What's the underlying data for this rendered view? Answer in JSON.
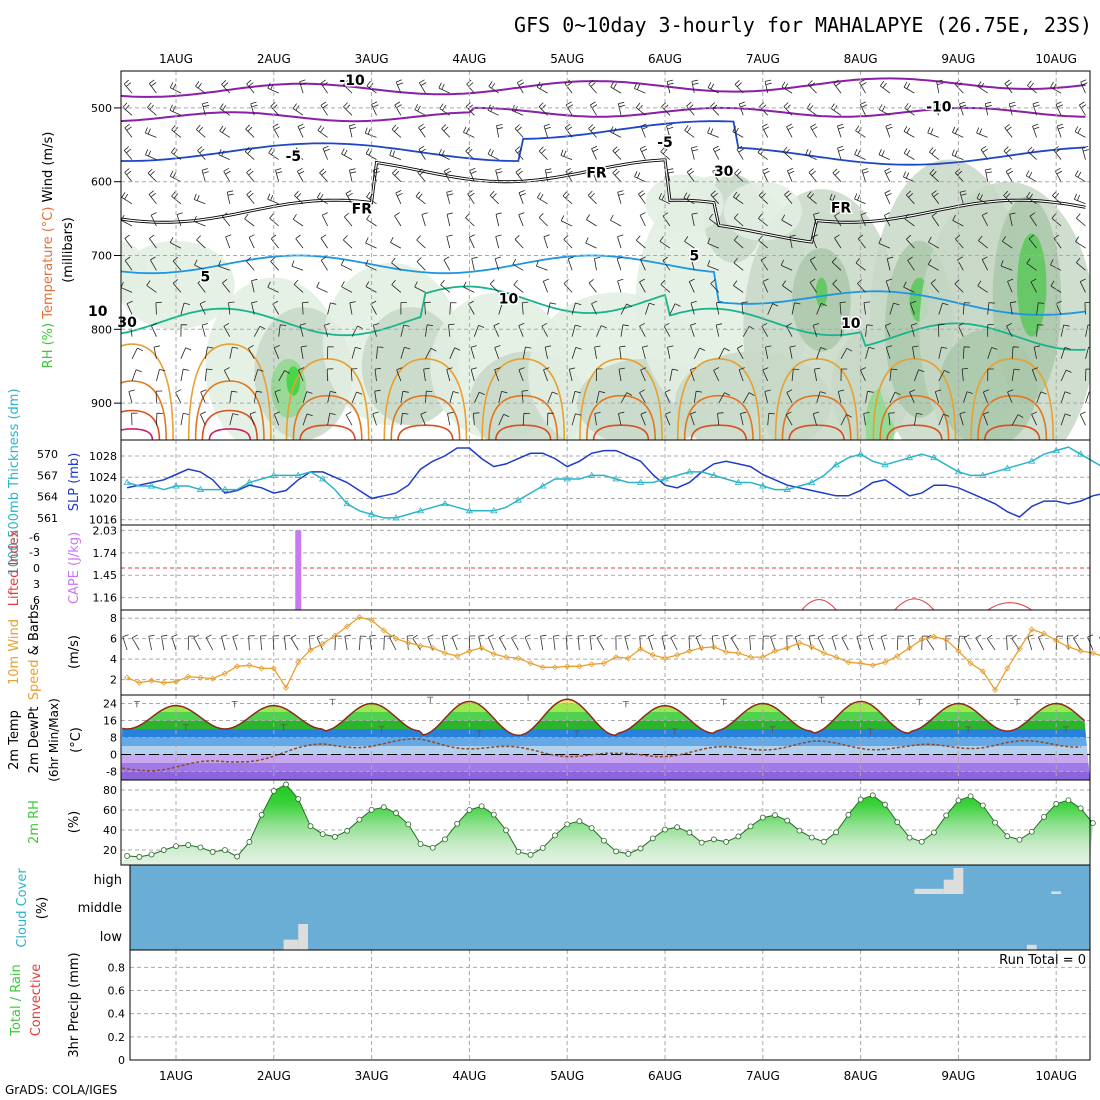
{
  "title": "GFS 0~10day 3-hourly for MAHALAPYE (26.75E, 23S)",
  "footer": "GrADS: COLA/IGES",
  "dates": [
    "1AUG",
    "2AUG",
    "3AUG",
    "4AUG",
    "5AUG",
    "6AUG",
    "7AUG",
    "8AUG",
    "9AUG",
    "10AUG"
  ],
  "colors": {
    "rh": "#3cc83c",
    "temp": "#e0703c",
    "slp": "#1e3cc8",
    "thickness": "#2cb4c8",
    "cape": "#c878f0",
    "li": "#e03c3c",
    "wind": "#e8a030",
    "precip_total": "#3cc83c",
    "precip_conv": "#e03c3c",
    "cloud_bg": "#6aaed6",
    "cloud_on": "#dddddd"
  },
  "chart_data": [
    {
      "type": "heatmap",
      "panel": "upper-air",
      "ylabels": [
        {
          "text": "RH (%)",
          "color": "#3cc83c"
        },
        {
          "text": "Temperature (°C)",
          "color": "#e0703c"
        },
        {
          "text": "Wind (m/s)",
          "color": "#000000"
        },
        {
          "text": "(millibars)",
          "color": "#000000"
        }
      ],
      "yticks": [
        500,
        600,
        700,
        800,
        900
      ],
      "ylim": [
        950,
        450
      ],
      "contour_labels": [
        {
          "text": "-10",
          "day": 2.8,
          "p": 469,
          "color": "#8a1fa8"
        },
        {
          "text": "-10",
          "day": 8.8,
          "p": 505,
          "color": "#8a1fa8"
        },
        {
          "text": "-5",
          "day": 2.2,
          "p": 572,
          "color": "#1e46c8"
        },
        {
          "text": "-5",
          "day": 6.0,
          "p": 553,
          "color": "#1e46c8"
        },
        {
          "text": "FR",
          "day": 2.9,
          "p": 643,
          "color": "#000000"
        },
        {
          "text": "FR",
          "day": 5.3,
          "p": 594,
          "color": "#000000"
        },
        {
          "text": "FR",
          "day": 7.8,
          "p": 642,
          "color": "#000000"
        },
        {
          "text": "5",
          "day": 1.3,
          "p": 735,
          "color": "#1e96e0"
        },
        {
          "text": "5",
          "day": 6.3,
          "p": 707,
          "color": "#1e96e0"
        },
        {
          "text": "10",
          "day": 0.2,
          "p": 782,
          "color": "#18b48c"
        },
        {
          "text": "10",
          "day": 4.4,
          "p": 765,
          "color": "#18b48c"
        },
        {
          "text": "10",
          "day": 7.9,
          "p": 798,
          "color": "#18b48c"
        },
        {
          "text": "30",
          "day": 6.6,
          "p": 592,
          "color": "#999999"
        },
        {
          "text": "30",
          "day": 0.5,
          "p": 797,
          "color": "#999999"
        }
      ]
    },
    {
      "type": "line",
      "panel": "slp-thickness",
      "ylabel_left": "1000-500mb Thickness (dm)",
      "ylabel_right": "SLP (mb)",
      "yticks_left": [
        561,
        564,
        567,
        570
      ],
      "yticks_right": [
        1016,
        1020,
        1024,
        1028
      ],
      "ylim_left": [
        560,
        572
      ],
      "ylim_right": [
        1015,
        1031
      ],
      "series": [
        {
          "name": "SLP (mb)",
          "axis": "right",
          "values": [
            1022,
            1022.5,
            1023,
            1023.5,
            1024.5,
            1025.5,
            1025,
            1023.5,
            1021,
            1021.5,
            1022.5,
            1022,
            1021,
            1021.5,
            1023.5,
            1025,
            1025,
            1024,
            1023,
            1021.5,
            1020,
            1020.5,
            1021,
            1022.5,
            1025.5,
            1027,
            1028,
            1029.5,
            1029.5,
            1027.5,
            1026,
            1026.5,
            1027.5,
            1028.5,
            1028.5,
            1027.5,
            1026,
            1027,
            1028.5,
            1029,
            1029,
            1028,
            1027,
            1024.5,
            1022.5,
            1022,
            1023,
            1025,
            1026.5,
            1027,
            1026.5,
            1026,
            1024.5,
            1023.5,
            1022.5,
            1022,
            1021.5,
            1021,
            1020.5,
            1020.5,
            1021.5,
            1023,
            1023.5,
            1022,
            1020.5,
            1021,
            1022.5,
            1022.5,
            1022,
            1021,
            1020,
            1019,
            1017.5,
            1016.5,
            1018.5,
            1019.5,
            1019.5,
            1019,
            1019.5,
            1020.5,
            1021,
            1020,
            1019,
            1017.5,
            1018.5,
            1020,
            1021.5,
            1022,
            1022.5,
            1024,
            1024.5,
            1023.5,
            1022.5,
            1021.5,
            1020,
            1019,
            1018.5,
            1017.5,
            1018.5,
            1020.5,
            1021.5,
            1021.5,
            1021,
            1020.5,
            1020.5,
            1021,
            1021,
            1020.5,
            1019.5,
            1020,
            1021,
            1022,
            1022,
            1022.5,
            1023,
            1024.5,
            1026,
            1024.5,
            1023.5,
            1023.5,
            1022.5,
            1023,
            1023.5,
            1024,
            1025
          ]
        },
        {
          "name": "1000-500mb Thickness (dm)",
          "axis": "left",
          "values": [
            566,
            565.5,
            565.5,
            565,
            565.5,
            565.5,
            565,
            565,
            565,
            565,
            566,
            566.5,
            567,
            567,
            567,
            567.5,
            566.5,
            565,
            563,
            562,
            561.5,
            561,
            561,
            561.5,
            562,
            562.5,
            563,
            562.5,
            562,
            562,
            562,
            562.5,
            563.5,
            564.5,
            565.5,
            566.5,
            566.5,
            566.5,
            567,
            567,
            566.5,
            566,
            566,
            566,
            566.5,
            567,
            567.5,
            567.5,
            567,
            566.5,
            566,
            566,
            565.5,
            565,
            565,
            565.5,
            566,
            567,
            568.5,
            569.5,
            570,
            569,
            568.5,
            569,
            569.5,
            570,
            569.5,
            568.5,
            567.5,
            567,
            567,
            567.5,
            568,
            568.5,
            569,
            570,
            570.5,
            571,
            570,
            569,
            568,
            566.5,
            565,
            564,
            564.5,
            565.5,
            566,
            566,
            566,
            565.5,
            565,
            565,
            565.5,
            566,
            566.5,
            566.5,
            566,
            566,
            565.5,
            565,
            564.5,
            564,
            563.5,
            563,
            562.5,
            562,
            562.5,
            563,
            563.5,
            564,
            564.5,
            565,
            565.5,
            566,
            566,
            565.5,
            565,
            564.5,
            564,
            563.5,
            563,
            563,
            562.5,
            562,
            562,
            562.5,
            563
          ]
        }
      ]
    },
    {
      "type": "bar",
      "panel": "lifted-index-cape",
      "ylabel_left": "Lifted Index",
      "ylabel_right": "CAPE (J/kg)",
      "yticks_left": [
        "-6",
        "-3",
        "0",
        "3",
        "6"
      ],
      "yticks_right": [
        "1.16",
        "1.45",
        "1.74",
        "2.03"
      ],
      "ylim_cape": [
        1.0,
        2.1
      ],
      "cape_bars": [
        {
          "day": 2.25,
          "value": 2.03
        }
      ],
      "li_humps": [
        {
          "start": 7.4,
          "end": 7.75,
          "value": 3.0
        },
        {
          "start": 8.35,
          "end": 8.75,
          "value": 3.3
        },
        {
          "start": 9.3,
          "end": 9.75,
          "value": 1.8
        }
      ]
    },
    {
      "type": "line",
      "panel": "10m-wind",
      "ylabels": [
        {
          "text": "10m Wind",
          "color": "#e8a030"
        },
        {
          "text": "Speed",
          "color": "#e8a030"
        },
        {
          "text": "& Barbs",
          "color": "#000000"
        },
        {
          "text": "(m/s)",
          "color": "#000000"
        }
      ],
      "yticks": [
        2,
        4,
        6,
        8
      ],
      "ylim": [
        0.5,
        8.8
      ],
      "series": [
        {
          "name": "Speed",
          "values": [
            2.2,
            1.7,
            1.9,
            1.7,
            1.8,
            2.3,
            2.2,
            2.1,
            2.6,
            3.3,
            3.4,
            3.1,
            3.1,
            1.2,
            3.7,
            4.9,
            5.5,
            6.3,
            7.2,
            8.1,
            7.8,
            6.8,
            6.0,
            5.6,
            5.3,
            5.1,
            4.6,
            4.3,
            4.8,
            5.1,
            4.5,
            4.2,
            4.1,
            3.6,
            3.2,
            3.2,
            3.3,
            3.3,
            3.5,
            3.6,
            4.2,
            4.1,
            5.0,
            4.4,
            4.1,
            4.4,
            4.8,
            5.1,
            5.2,
            4.7,
            4.6,
            4.2,
            4.2,
            4.8,
            5.1,
            5.6,
            5.2,
            4.6,
            4.2,
            3.7,
            3.6,
            3.4,
            3.7,
            4.3,
            5.1,
            5.9,
            6.2,
            5.9,
            4.8,
            3.6,
            2.8,
            1.0,
            3.1,
            5.0,
            6.9,
            6.5,
            5.8,
            5.2,
            4.8,
            4.6,
            4.2,
            4.5,
            5.3,
            5.6,
            5.5,
            5.3,
            5.6,
            5.1,
            4.5,
            4.7,
            4.9,
            5.2,
            5.1,
            4.8,
            4.9,
            5.1,
            5.5,
            5.7,
            5.6,
            5.2,
            4.8,
            4.6,
            4.9,
            5.1,
            5.6,
            5.8,
            5.4,
            4.6,
            4.3,
            4.4,
            4.8,
            5.2,
            4.7,
            4.2,
            3.6,
            3.4,
            3.9,
            4.1,
            3.6,
            3.2,
            3.8,
            4.2,
            4.6,
            4.2,
            3.5
          ]
        }
      ]
    },
    {
      "type": "area",
      "panel": "2m-temp",
      "ylabels": [
        {
          "text": "2m Temp",
          "color": "#000000"
        },
        {
          "text": "2m DewPt",
          "color": "#000000"
        },
        {
          "text": "(6hr Min/Max)",
          "color": "#000000"
        },
        {
          "text": "(°C)",
          "color": "#000000"
        }
      ],
      "yticks": [
        -8,
        0,
        8,
        16,
        24
      ],
      "ylim": [
        -12,
        28
      ],
      "temp_max": [
        23,
        23,
        24,
        25,
        26,
        23,
        24,
        25,
        24,
        24
      ],
      "temp_min": [
        12,
        12,
        11,
        9,
        9,
        10,
        11,
        10,
        11,
        11
      ],
      "dewpoint": [
        -7,
        -4,
        4,
        6,
        2,
        -1,
        2,
        5,
        3,
        5
      ]
    },
    {
      "type": "area",
      "panel": "2m-rh",
      "ylabels": [
        {
          "text": "2m RH",
          "color": "#3cc83c"
        },
        {
          "text": "(%)",
          "color": "#000000"
        }
      ],
      "yticks": [
        20,
        40,
        60,
        80
      ],
      "ylim": [
        5,
        90
      ],
      "rh_max": [
        25,
        86,
        63,
        64,
        49,
        43,
        55,
        75,
        74,
        70
      ],
      "rh_min": [
        13,
        13,
        33,
        22,
        15,
        16,
        28,
        28,
        28,
        30
      ]
    },
    {
      "type": "heatmap",
      "panel": "cloud-cover",
      "ylabels": [
        {
          "text": "Cloud Cover",
          "color": "#2cb4c8"
        },
        {
          "text": "(%)",
          "color": "#000000"
        }
      ],
      "levels": [
        "high",
        "middle",
        "low"
      ],
      "blocks": [
        {
          "level": "low",
          "start": 2.1,
          "end": 2.25,
          "frac": 0.4
        },
        {
          "level": "low",
          "start": 2.25,
          "end": 2.35,
          "frac": 1.0
        },
        {
          "level": "high",
          "start": 8.55,
          "end": 8.85,
          "frac": 0.2
        },
        {
          "level": "high",
          "start": 8.85,
          "end": 8.95,
          "frac": 0.55
        },
        {
          "level": "high",
          "start": 8.95,
          "end": 9.05,
          "frac": 1.0
        },
        {
          "level": "high",
          "start": 9.95,
          "end": 10.05,
          "frac": 0.1
        },
        {
          "level": "low",
          "start": 9.7,
          "end": 9.8,
          "frac": 0.2
        }
      ]
    },
    {
      "type": "bar",
      "panel": "precip",
      "ylabels": [
        {
          "text": "Total / Rain",
          "color": "#3cc83c"
        },
        {
          "text": "Convective",
          "color": "#e03c3c"
        },
        {
          "text": "3hr Precip (mm)",
          "color": "#000000"
        }
      ],
      "yticks": [
        "0",
        "0.2",
        "0.4",
        "0.6",
        "0.8"
      ],
      "ylim": [
        0,
        0.95
      ],
      "values": [],
      "annotation": "Run Total = 0"
    }
  ]
}
